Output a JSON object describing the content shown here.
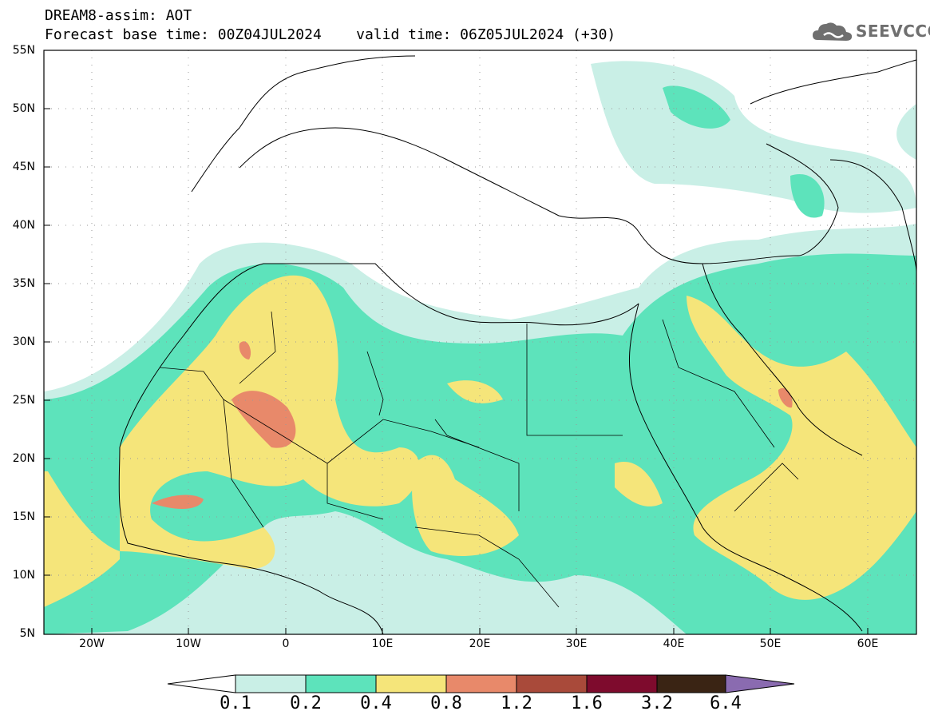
{
  "header": {
    "line1": "DREAM8-assim: AOT",
    "line2": "Forecast base time: 00Z04JUL2024    valid time: 06Z05JUL2024 (+30)"
  },
  "logo": {
    "text": "SEEVCCC",
    "icon": "cloud-icon"
  },
  "axes": {
    "lat_labels": [
      "55N",
      "50N",
      "45N",
      "40N",
      "35N",
      "30N",
      "25N",
      "20N",
      "15N",
      "10N",
      "5N"
    ],
    "lon_labels": [
      "20W",
      "10W",
      "0",
      "10E",
      "20E",
      "30E",
      "40E",
      "50E",
      "60E"
    ],
    "lat_range": [
      5,
      55
    ],
    "lon_range": [
      -25,
      65
    ]
  },
  "colorbar": {
    "levels": [
      "0.1",
      "0.2",
      "0.4",
      "0.8",
      "1.2",
      "1.6",
      "3.2",
      "6.4"
    ],
    "colors": [
      "#ffffff",
      "#c9efe6",
      "#5de3bb",
      "#f5e57a",
      "#e8896a",
      "#a94a3a",
      "#7e0b2d",
      "#3a2414",
      "#8a6bb0"
    ]
  },
  "colors": {
    "c1": "#c9efe6",
    "c2": "#5de3bb",
    "c3": "#f5e57a",
    "c4": "#e8896a",
    "coast": "#000000"
  }
}
